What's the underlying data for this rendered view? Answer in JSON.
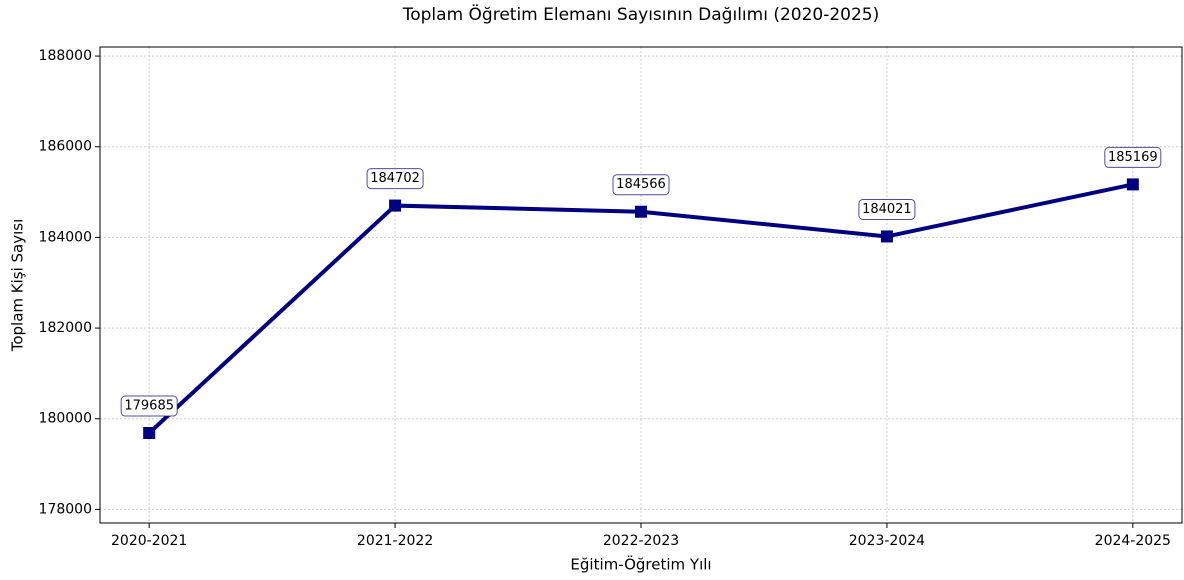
{
  "chart_data": {
    "type": "line",
    "title": "Toplam Öğretim Elemanı Sayısının Dağılımı (2020-2025)",
    "x_label": "Eğitim-Öğretim Yılı",
    "y_label": "Toplam Kişi Sayısı",
    "categories": [
      "2020-2021",
      "2021-2022",
      "2022-2023",
      "2023-2024",
      "2024-2025"
    ],
    "series": [
      {
        "name": "Toplam Kişi Sayısı",
        "color": "#000080",
        "values": [
          179685,
          184702,
          184566,
          184021,
          185169
        ]
      }
    ],
    "ylim": [
      177700,
      188200
    ],
    "yticks": [
      178000,
      180000,
      182000,
      184000,
      186000,
      188000
    ],
    "grid": true
  }
}
